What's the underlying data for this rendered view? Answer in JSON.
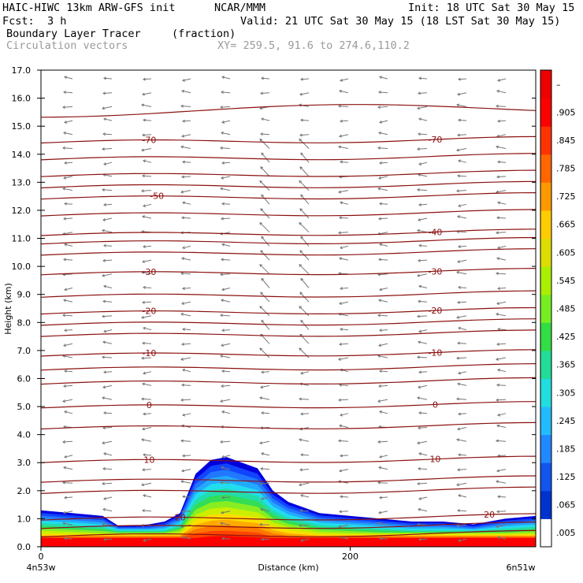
{
  "header": {
    "model": "HAIC-HIWC 13km ARW-GFS init",
    "org": "NCAR/MMM",
    "init": "Init: 18 UTC Sat 30 May 15",
    "fcst_label": "Fcst:",
    "fcst_value": "3 h",
    "valid": "Valid: 21 UTC Sat 30 May 15 (18 LST Sat 30 May 15)",
    "field": "Boundary Layer Tracer",
    "field_units": "(fraction)",
    "overlay": "Circulation vectors",
    "xy": "XY= 259.5, 91.6 to 274.6,110.2"
  },
  "chart_data": {
    "type": "heatmap",
    "title": "Boundary Layer Tracer",
    "xlabel": "Distance (km)",
    "ylabel": "Height (km)",
    "xlim": [
      0,
      320
    ],
    "ylim": [
      0,
      17
    ],
    "x_ticks": [
      {
        "value": 0,
        "label": "0"
      },
      {
        "value": 200,
        "label": "200"
      }
    ],
    "x_endpoints": [
      "4n53w",
      "6n51w"
    ],
    "y_ticks": [
      "0.0",
      "1.0",
      "2.0",
      "3.0",
      "4.0",
      "5.0",
      "6.0",
      "7.0",
      "8.0",
      "9.0",
      "10.0",
      "11.0",
      "12.0",
      "13.0",
      "14.0",
      "15.0",
      "16.0",
      "17.0"
    ],
    "colorbar": {
      "labels": [
        ".005",
        ".065",
        ".125",
        ".185",
        ".245",
        ".305",
        ".365",
        ".425",
        ".485",
        ".545",
        ".605",
        ".665",
        ".725",
        ".785",
        ".845",
        ".905",
        "–"
      ],
      "colors": [
        "#ffffff",
        "#0033cc",
        "#1155ee",
        "#2288ff",
        "#22bbff",
        "#22dddd",
        "#22dd99",
        "#33dd44",
        "#77ee22",
        "#aaee00",
        "#dddd00",
        "#ffcc00",
        "#ff9900",
        "#ff6600",
        "#ff3300",
        "#ff0000",
        "#ee0000"
      ]
    },
    "tracer_profile": {
      "x_km": [
        0,
        20,
        40,
        50,
        60,
        70,
        80,
        90,
        100,
        110,
        120,
        130,
        140,
        150,
        160,
        180,
        200,
        220,
        240,
        260,
        280,
        300,
        320
      ],
      "top_km": [
        1.3,
        1.2,
        1.1,
        0.7,
        0.7,
        0.8,
        0.9,
        1.2,
        2.6,
        3.1,
        3.2,
        3.0,
        2.8,
        2.0,
        1.6,
        1.2,
        1.1,
        1.0,
        0.9,
        0.9,
        0.8,
        1.0,
        1.1
      ]
    },
    "temperature_contours": [
      {
        "level": 20,
        "label": "20",
        "height_km": 0.95
      },
      {
        "level": 10,
        "label": "10",
        "height_km": 3.0
      },
      {
        "level": 0,
        "label": "0",
        "height_km": 4.95
      },
      {
        "level": -10,
        "label": "-10",
        "height_km": 6.8
      },
      {
        "level": -20,
        "label": "-20",
        "height_km": 8.3
      },
      {
        "level": -30,
        "label": "-30",
        "height_km": 9.7
      },
      {
        "level": -40,
        "label": "-40",
        "height_km": 11.1
      },
      {
        "level": -50,
        "label": "-50",
        "height_km": 12.4
      },
      {
        "level": -70,
        "label": "-70",
        "height_km": 14.4
      }
    ],
    "extra_contour_heights_km": [
      0.35,
      0.65,
      1.9,
      2.3,
      4.2,
      5.8,
      6.3,
      7.5,
      7.9,
      8.9,
      10.4,
      10.8,
      11.8,
      12.8,
      13.2,
      13.8,
      15.5,
      17.0
    ]
  }
}
